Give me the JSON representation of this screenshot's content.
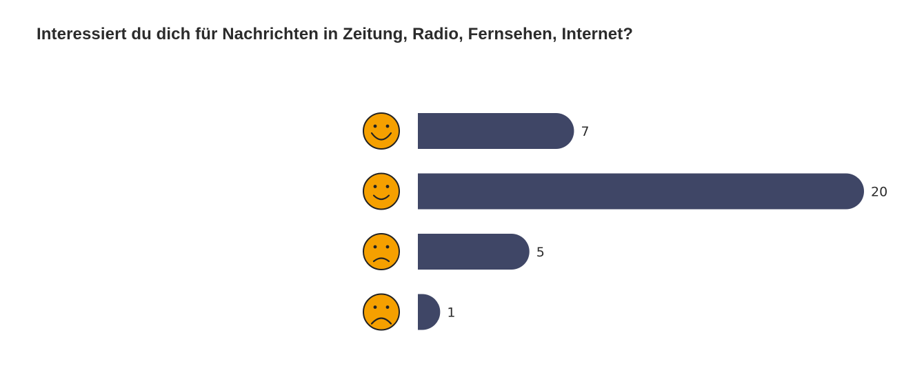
{
  "chart_data": {
    "type": "bar",
    "orientation": "horizontal",
    "title": "Interessiert du dich für Nachrichten in Zeitung, Radio, Fernsehen, Internet?",
    "categories": [
      "very-happy-face",
      "happy-face",
      "sad-face",
      "very-sad-face"
    ],
    "values": [
      7,
      20,
      5,
      1
    ],
    "value_labels": [
      "7",
      "20",
      "5",
      "1"
    ],
    "xlim": [
      0,
      20
    ],
    "grid": false,
    "legend": "none"
  },
  "colors": {
    "bar": "#3f4666",
    "face_fill": "#f5a000",
    "face_stroke": "#222222",
    "text": "#2b2b2b"
  }
}
